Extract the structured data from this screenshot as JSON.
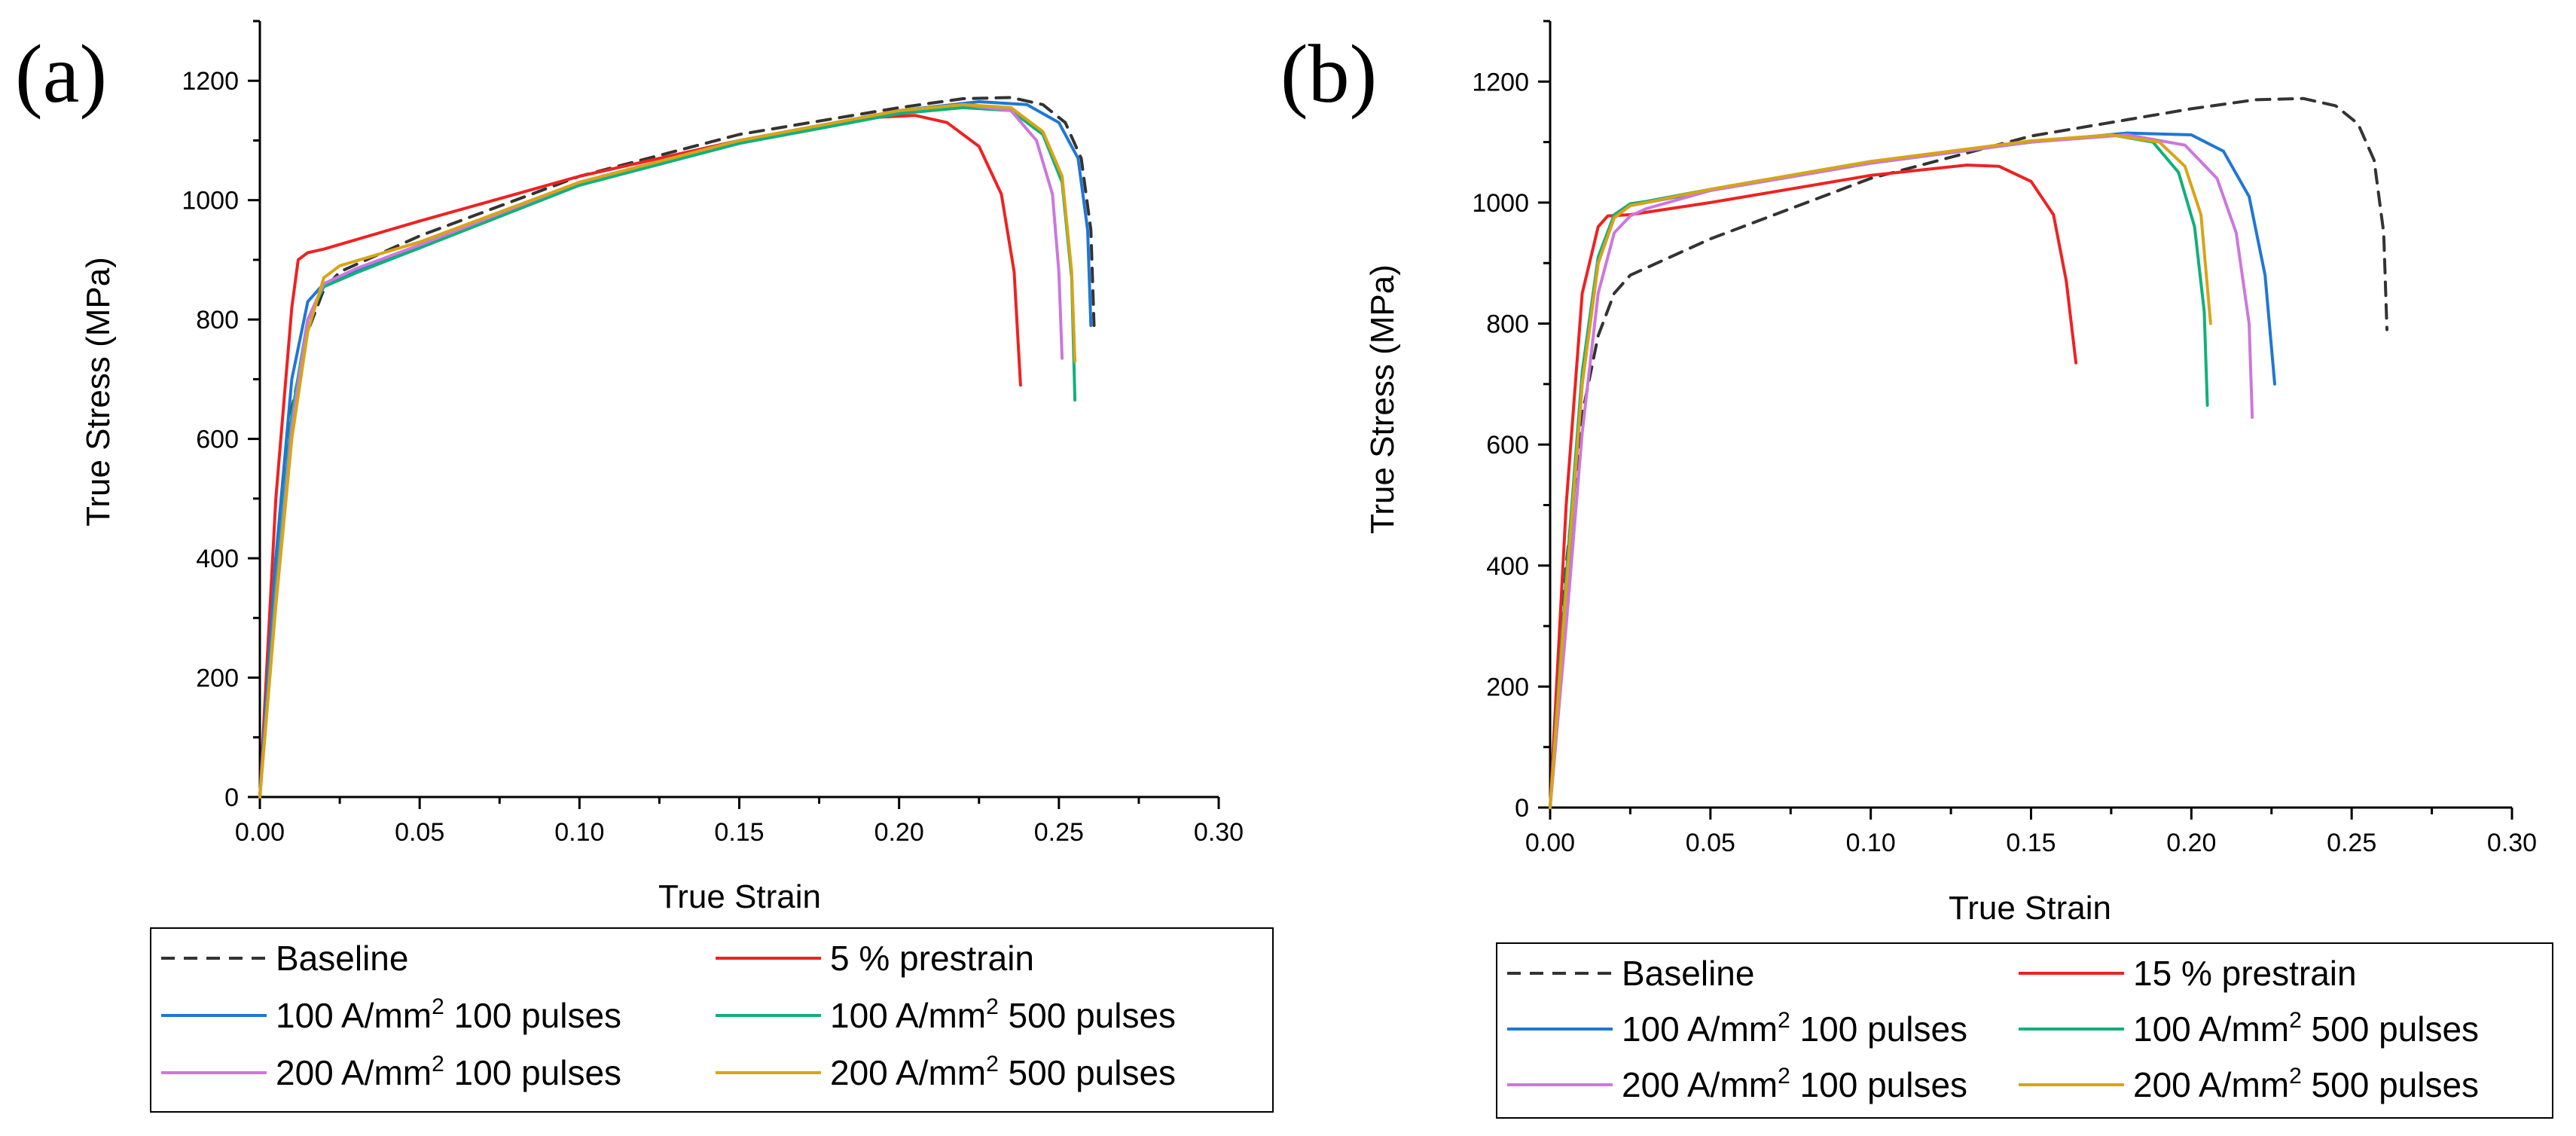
{
  "colors": {
    "baseline": "#333333",
    "prestrain": "#ee2222",
    "a100p100": "#1f77d4",
    "a100p500": "#11b07a",
    "a200p100": "#cc77dd",
    "a200p500": "#d8a416"
  },
  "chart_data": [
    {
      "panel_label": "(a)",
      "type": "line",
      "xlabel": "True Strain",
      "ylabel": "True Stress (MPa)",
      "xlim": [
        0,
        0.3
      ],
      "ylim": [
        0,
        1300
      ],
      "xticks": [
        "0.00",
        "0.05",
        "0.10",
        "0.15",
        "0.20",
        "0.25",
        "0.30"
      ],
      "yticks": [
        "0",
        "200",
        "400",
        "600",
        "800",
        "1000",
        "1200"
      ],
      "grid": false,
      "legend_position": "bottom",
      "legend": [
        {
          "key": "baseline",
          "text": "Baseline",
          "dashed": true
        },
        {
          "key": "prestrain",
          "text": "5 % prestrain",
          "dashed": false
        },
        {
          "key": "a100p100",
          "text": "100 A/mm",
          "sup": "2",
          "tail": " 100 pulses",
          "dashed": false
        },
        {
          "key": "a100p500",
          "text": "100 A/mm",
          "sup": "2",
          "tail": " 500 pulses",
          "dashed": false
        },
        {
          "key": "a200p100",
          "text": "200 A/mm",
          "sup": "2",
          "tail": " 100 pulses",
          "dashed": false
        },
        {
          "key": "a200p500",
          "text": "200 A/mm",
          "sup": "2",
          "tail": " 500 pulses",
          "dashed": false
        }
      ],
      "series": [
        {
          "key": "baseline",
          "dashed": true,
          "x": [
            0,
            0.005,
            0.01,
            0.015,
            0.02,
            0.025,
            0.05,
            0.1,
            0.15,
            0.2,
            0.22,
            0.235,
            0.245,
            0.252,
            0.257,
            0.26,
            0.261
          ],
          "y": [
            0,
            400,
            650,
            780,
            850,
            880,
            940,
            1040,
            1110,
            1155,
            1170,
            1172,
            1160,
            1130,
            1070,
            950,
            790
          ]
        },
        {
          "key": "prestrain",
          "dashed": false,
          "x": [
            0,
            0.005,
            0.01,
            0.012,
            0.015,
            0.02,
            0.05,
            0.1,
            0.15,
            0.19,
            0.205,
            0.215,
            0.225,
            0.232,
            0.236,
            0.238
          ],
          "y": [
            0,
            500,
            820,
            900,
            912,
            918,
            965,
            1040,
            1100,
            1138,
            1142,
            1130,
            1090,
            1010,
            880,
            690
          ]
        },
        {
          "key": "a100p100",
          "dashed": false,
          "x": [
            0,
            0.005,
            0.01,
            0.015,
            0.02,
            0.03,
            0.05,
            0.1,
            0.15,
            0.2,
            0.225,
            0.24,
            0.25,
            0.256,
            0.259,
            0.26
          ],
          "y": [
            0,
            400,
            700,
            830,
            860,
            880,
            920,
            1030,
            1100,
            1150,
            1165,
            1160,
            1130,
            1070,
            950,
            790
          ]
        },
        {
          "key": "a100p500",
          "dashed": false,
          "x": [
            0,
            0.005,
            0.01,
            0.015,
            0.02,
            0.03,
            0.05,
            0.1,
            0.15,
            0.2,
            0.22,
            0.235,
            0.245,
            0.251,
            0.254,
            0.255
          ],
          "y": [
            0,
            350,
            640,
            800,
            855,
            878,
            920,
            1025,
            1095,
            1145,
            1155,
            1150,
            1110,
            1030,
            870,
            665
          ]
        },
        {
          "key": "a200p100",
          "dashed": false,
          "x": [
            0,
            0.005,
            0.01,
            0.015,
            0.02,
            0.03,
            0.05,
            0.1,
            0.15,
            0.2,
            0.22,
            0.235,
            0.243,
            0.248,
            0.25,
            0.251
          ],
          "y": [
            0,
            330,
            620,
            800,
            860,
            885,
            925,
            1030,
            1100,
            1150,
            1160,
            1150,
            1100,
            1010,
            880,
            735
          ]
        },
        {
          "key": "a200p500",
          "dashed": false,
          "x": [
            0,
            0.005,
            0.01,
            0.015,
            0.02,
            0.025,
            0.05,
            0.1,
            0.15,
            0.2,
            0.22,
            0.235,
            0.245,
            0.251,
            0.254,
            0.255
          ],
          "y": [
            0,
            320,
            600,
            780,
            870,
            890,
            930,
            1030,
            1100,
            1150,
            1160,
            1155,
            1115,
            1040,
            880,
            730
          ]
        }
      ]
    },
    {
      "panel_label": "(b)",
      "type": "line",
      "xlabel": "True Strain",
      "ylabel": "True Stress (MPa)",
      "xlim": [
        0,
        0.3
      ],
      "ylim": [
        0,
        1300
      ],
      "xticks": [
        "0.00",
        "0.05",
        "0.10",
        "0.15",
        "0.20",
        "0.25",
        "0.30"
      ],
      "yticks": [
        "0",
        "200",
        "400",
        "600",
        "800",
        "1000",
        "1200"
      ],
      "grid": false,
      "legend_position": "bottom",
      "legend": [
        {
          "key": "baseline",
          "text": "Baseline",
          "dashed": true
        },
        {
          "key": "prestrain",
          "text": "15 % prestrain",
          "dashed": false
        },
        {
          "key": "a100p100",
          "text": "100 A/mm",
          "sup": "2",
          "tail": " 100 pulses",
          "dashed": false
        },
        {
          "key": "a100p500",
          "text": "100 A/mm",
          "sup": "2",
          "tail": " 500 pulses",
          "dashed": false
        },
        {
          "key": "a200p100",
          "text": "200 A/mm",
          "sup": "2",
          "tail": " 100 pulses",
          "dashed": false
        },
        {
          "key": "a200p500",
          "text": "200 A/mm",
          "sup": "2",
          "tail": " 500 pulses",
          "dashed": false
        }
      ],
      "series": [
        {
          "key": "baseline",
          "dashed": true,
          "x": [
            0,
            0.005,
            0.01,
            0.015,
            0.02,
            0.025,
            0.05,
            0.1,
            0.15,
            0.2,
            0.22,
            0.235,
            0.245,
            0.252,
            0.257,
            0.26,
            0.261
          ],
          "y": [
            0,
            400,
            650,
            780,
            850,
            880,
            940,
            1040,
            1110,
            1155,
            1170,
            1172,
            1160,
            1130,
            1070,
            950,
            790
          ]
        },
        {
          "key": "prestrain",
          "dashed": false,
          "x": [
            0,
            0.005,
            0.01,
            0.015,
            0.018,
            0.025,
            0.05,
            0.1,
            0.13,
            0.14,
            0.15,
            0.157,
            0.161,
            0.164
          ],
          "y": [
            0,
            500,
            850,
            960,
            978,
            980,
            1000,
            1045,
            1062,
            1060,
            1035,
            980,
            870,
            735
          ]
        },
        {
          "key": "a100p100",
          "dashed": false,
          "x": [
            0,
            0.005,
            0.01,
            0.015,
            0.02,
            0.025,
            0.03,
            0.05,
            0.1,
            0.15,
            0.18,
            0.2,
            0.21,
            0.218,
            0.223,
            0.226
          ],
          "y": [
            0,
            350,
            700,
            900,
            975,
            995,
            1000,
            1020,
            1065,
            1100,
            1115,
            1112,
            1085,
            1010,
            880,
            700
          ]
        },
        {
          "key": "a100p500",
          "dashed": false,
          "x": [
            0,
            0.005,
            0.01,
            0.015,
            0.02,
            0.025,
            0.03,
            0.05,
            0.1,
            0.15,
            0.175,
            0.188,
            0.196,
            0.201,
            0.204,
            0.205
          ],
          "y": [
            0,
            380,
            720,
            910,
            980,
            998,
            1002,
            1022,
            1068,
            1100,
            1112,
            1100,
            1050,
            960,
            820,
            665
          ]
        },
        {
          "key": "a200p100",
          "dashed": false,
          "x": [
            0,
            0.005,
            0.01,
            0.015,
            0.02,
            0.025,
            0.03,
            0.05,
            0.1,
            0.15,
            0.18,
            0.198,
            0.208,
            0.214,
            0.218,
            0.219
          ],
          "y": [
            0,
            300,
            620,
            850,
            950,
            978,
            990,
            1020,
            1065,
            1100,
            1112,
            1095,
            1040,
            950,
            800,
            645
          ]
        },
        {
          "key": "a200p500",
          "dashed": false,
          "x": [
            0,
            0.005,
            0.01,
            0.015,
            0.02,
            0.025,
            0.03,
            0.05,
            0.1,
            0.15,
            0.175,
            0.19,
            0.198,
            0.203,
            0.206
          ],
          "y": [
            0,
            360,
            700,
            900,
            975,
            995,
            1000,
            1022,
            1068,
            1102,
            1112,
            1100,
            1060,
            980,
            800
          ]
        }
      ]
    }
  ]
}
